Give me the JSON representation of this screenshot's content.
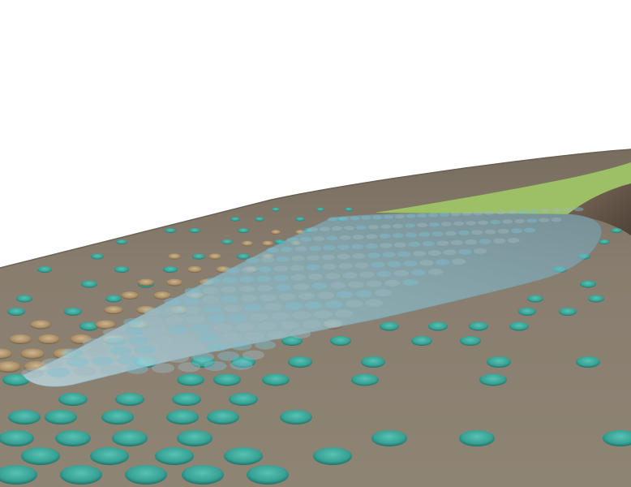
{
  "scene": {
    "description_hidden": "",
    "colors": {
      "sky": "#ffffff",
      "ground": "#8a7f70",
      "ground_dark": "#766c5e",
      "ground_edge": "#5e554a",
      "grass": "#9dbf65",
      "ridge": "#6a5a4c",
      "marker_teal": "#3aa89b",
      "marker_teal_dark": "#237a70",
      "marker_tan": "#b59a72",
      "marker_tan_dark": "#7d6748",
      "water": "#a9d6e6",
      "water_edge": "#5d8fa3"
    }
  }
}
